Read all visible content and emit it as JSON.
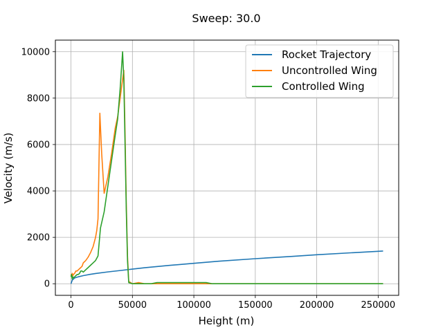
{
  "chart_data": {
    "type": "line",
    "title": "Sweep: 30.0",
    "xlabel": "Height (m)",
    "ylabel": "Velocity (m/s)",
    "xlim": [
      -12700,
      266700
    ],
    "ylim": [
      -500,
      10500
    ],
    "xticks": [
      0,
      50000,
      100000,
      150000,
      200000,
      250000
    ],
    "xtick_labels": [
      "0",
      "50000",
      "100000",
      "150000",
      "200000",
      "250000"
    ],
    "yticks": [
      0,
      2000,
      4000,
      6000,
      8000,
      10000
    ],
    "ytick_labels": [
      "0",
      "2000",
      "4000",
      "6000",
      "8000",
      "10000"
    ],
    "grid": true,
    "legend_position": "top-right",
    "series": [
      {
        "name": "Rocket Trajectory",
        "color": "#1f77b4",
        "x": [
          0,
          1000,
          3000,
          6000,
          10000,
          15000,
          20000,
          30000,
          40000,
          50000,
          60000,
          80000,
          100000,
          120000,
          150000,
          180000,
          200000,
          230000,
          254000
        ],
        "y": [
          0,
          150,
          250,
          300,
          350,
          400,
          440,
          510,
          570,
          630,
          690,
          790,
          880,
          970,
          1080,
          1180,
          1250,
          1340,
          1410
        ]
      },
      {
        "name": "Uncontrolled Wing",
        "color": "#ff7f0e",
        "x": [
          0,
          500,
          1000,
          1500,
          2000,
          3000,
          4000,
          5000,
          6000,
          7000,
          8000,
          9000,
          10000,
          11000,
          12000,
          14000,
          16000,
          18000,
          20000,
          21000,
          22000,
          23500,
          25000,
          27000,
          30000,
          33000,
          36000,
          38000,
          40000,
          42000,
          43000,
          44000,
          45000,
          46000,
          47000,
          50000,
          55000,
          60000,
          70000,
          80000,
          90000,
          100000,
          110000,
          115000,
          120000,
          150000,
          200000,
          254000
        ],
        "y": [
          400,
          300,
          450,
          350,
          400,
          450,
          550,
          550,
          600,
          650,
          700,
          750,
          900,
          950,
          1000,
          1150,
          1350,
          1600,
          2000,
          2300,
          2800,
          7350,
          5600,
          3900,
          4600,
          5600,
          6700,
          7200,
          8000,
          8800,
          9200,
          6500,
          3500,
          1200,
          100,
          0,
          50,
          0,
          0,
          0,
          0,
          0,
          0,
          0,
          0,
          0,
          0,
          0
        ]
      },
      {
        "name": "Controlled Wing",
        "color": "#2ca02c",
        "x": [
          0,
          500,
          1000,
          1500,
          2000,
          3000,
          4000,
          5000,
          6000,
          7000,
          8000,
          9000,
          10000,
          12000,
          14000,
          16000,
          18000,
          20000,
          22000,
          24000,
          27000,
          30000,
          33000,
          36000,
          38000,
          40000,
          42000,
          43000,
          44000,
          45000,
          46000,
          47000,
          50000,
          55000,
          60000,
          65000,
          70000,
          80000,
          90000,
          100000,
          110000,
          115000,
          120000,
          150000,
          200000,
          254000
        ],
        "y": [
          300,
          400,
          200,
          300,
          250,
          300,
          350,
          400,
          400,
          450,
          550,
          550,
          500,
          600,
          700,
          800,
          900,
          1000,
          1200,
          2400,
          3100,
          4200,
          5300,
          6400,
          7100,
          8400,
          10000,
          8800,
          6000,
          3200,
          1000,
          50,
          0,
          0,
          0,
          0,
          50,
          50,
          50,
          50,
          50,
          0,
          0,
          0,
          0,
          0
        ]
      }
    ]
  }
}
